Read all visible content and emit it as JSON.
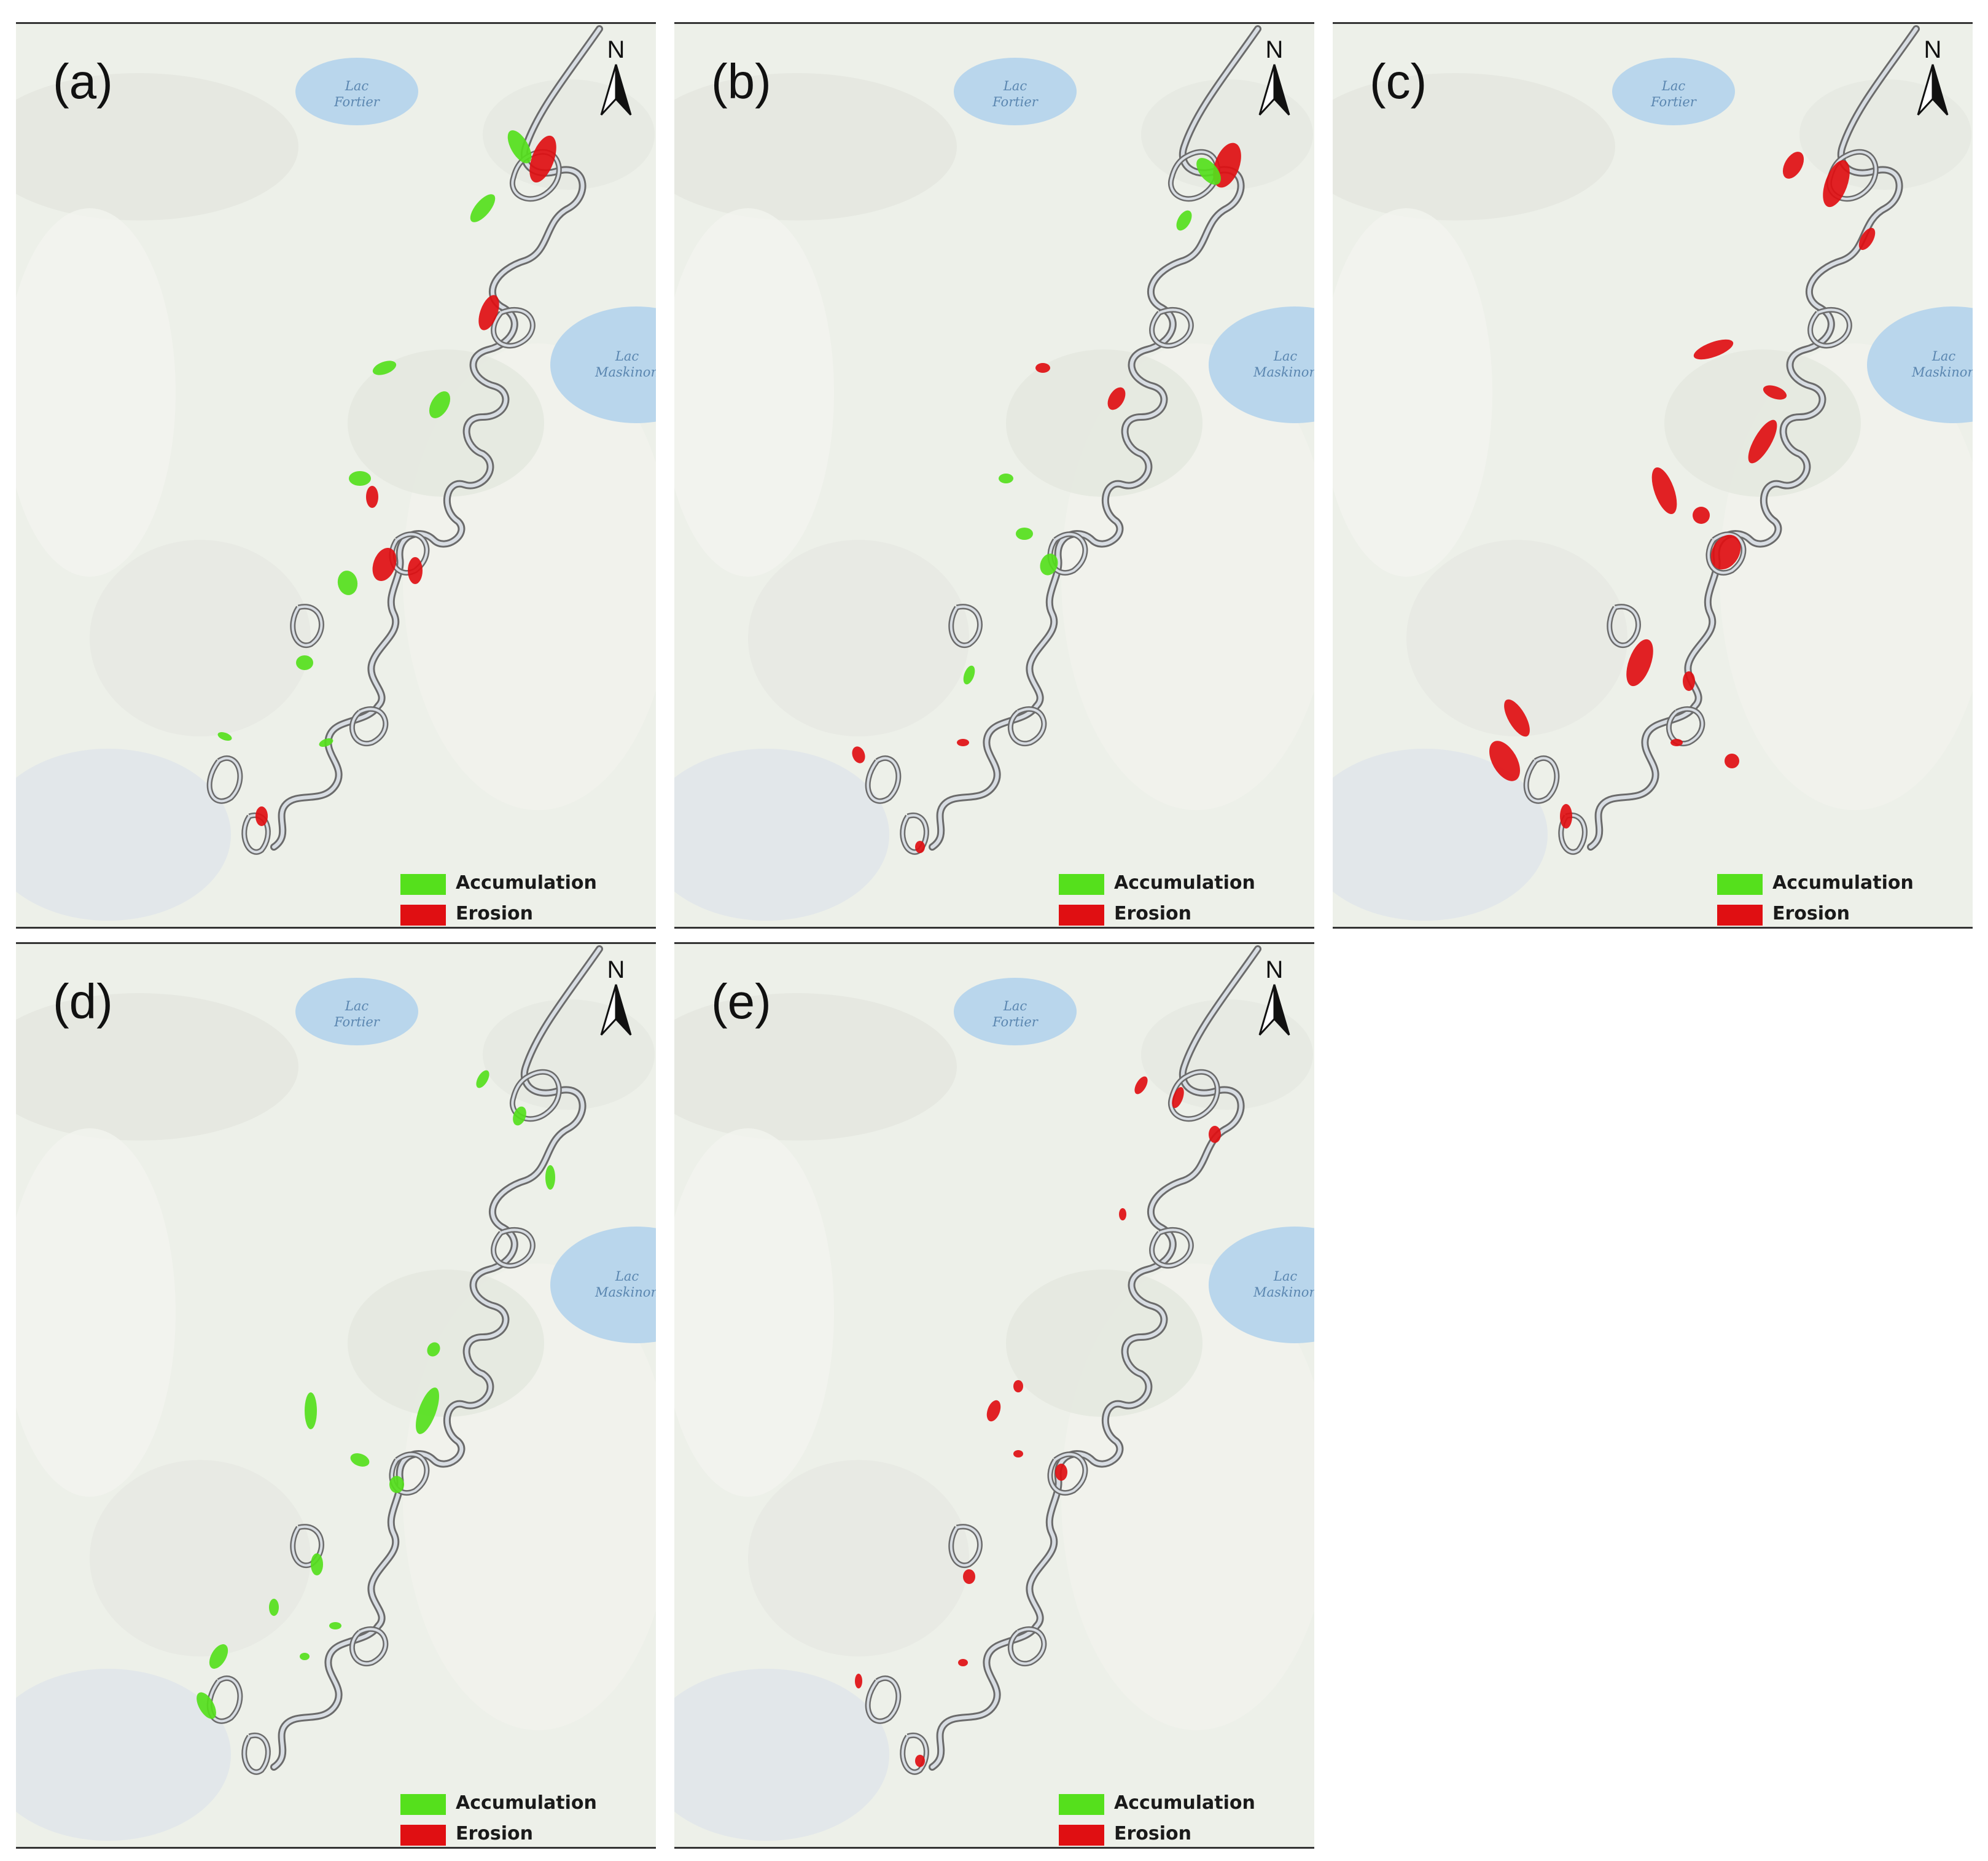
{
  "colors": {
    "accumulation": "#55e01c",
    "erosion": "#e00f12",
    "river_outline": "#6b6b6b",
    "river_fill": "#d8dde3",
    "background": "#edf0e9",
    "lake": "#b9d6ec"
  },
  "map_labels": {
    "lake_fortier": [
      "Lac",
      "Fortier"
    ],
    "lake_maskinonge": [
      "Lac",
      "Maskinon"
    ]
  },
  "north_label": "N",
  "legend": {
    "accumulation": "Accumulation",
    "erosion": "Erosion"
  },
  "panels": [
    {
      "label": "(a)"
    },
    {
      "label": "(b)"
    },
    {
      "label": "(c)"
    },
    {
      "label": "(d)"
    },
    {
      "label": "(e)"
    }
  ]
}
